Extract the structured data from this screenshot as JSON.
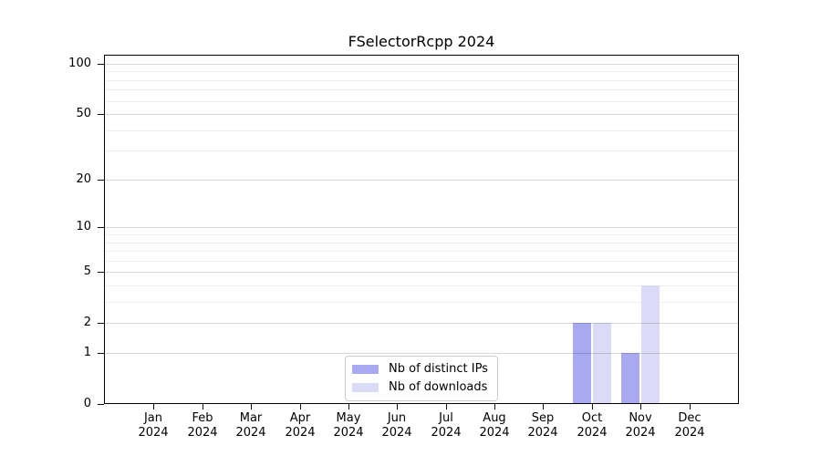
{
  "figure": {
    "background": "#ffffff",
    "axis_color": "#000000",
    "major_grid_color": "rgba(0,0,0,0.155)",
    "minor_grid_color": "rgba(0,0,0,0.07)"
  },
  "chart_data": {
    "type": "bar",
    "title": "FSelectorRcpp 2024",
    "xlabel": "",
    "ylabel": "",
    "categories": [
      "Jan 2024",
      "Feb 2024",
      "Mar 2024",
      "Apr 2024",
      "May 2024",
      "Jun 2024",
      "Jul 2024",
      "Aug 2024",
      "Sep 2024",
      "Oct 2024",
      "Nov 2024",
      "Dec 2024"
    ],
    "series": [
      {
        "name": "Nb of distinct IPs",
        "color": "#a9a9f2",
        "values": [
          0,
          0,
          0,
          0,
          0,
          0,
          0,
          0,
          0,
          2,
          1,
          0
        ]
      },
      {
        "name": "Nb of downloads",
        "color": "#dbdbf8",
        "values": [
          0,
          0,
          0,
          0,
          0,
          0,
          0,
          0,
          0,
          2,
          4,
          0
        ]
      }
    ],
    "yscale": "log1p",
    "ylim": [
      0,
      113
    ],
    "y_tick_labels": [
      100,
      50,
      20,
      10,
      5,
      2,
      1,
      0
    ],
    "y_major_gridlines": [
      100,
      50,
      20,
      10,
      5,
      2,
      1
    ],
    "y_minor_gridlines": [
      90,
      80,
      70,
      60,
      40,
      30,
      9,
      8,
      7,
      6,
      4,
      3
    ],
    "grid": true,
    "legend_position": "inside-bottom-center"
  }
}
